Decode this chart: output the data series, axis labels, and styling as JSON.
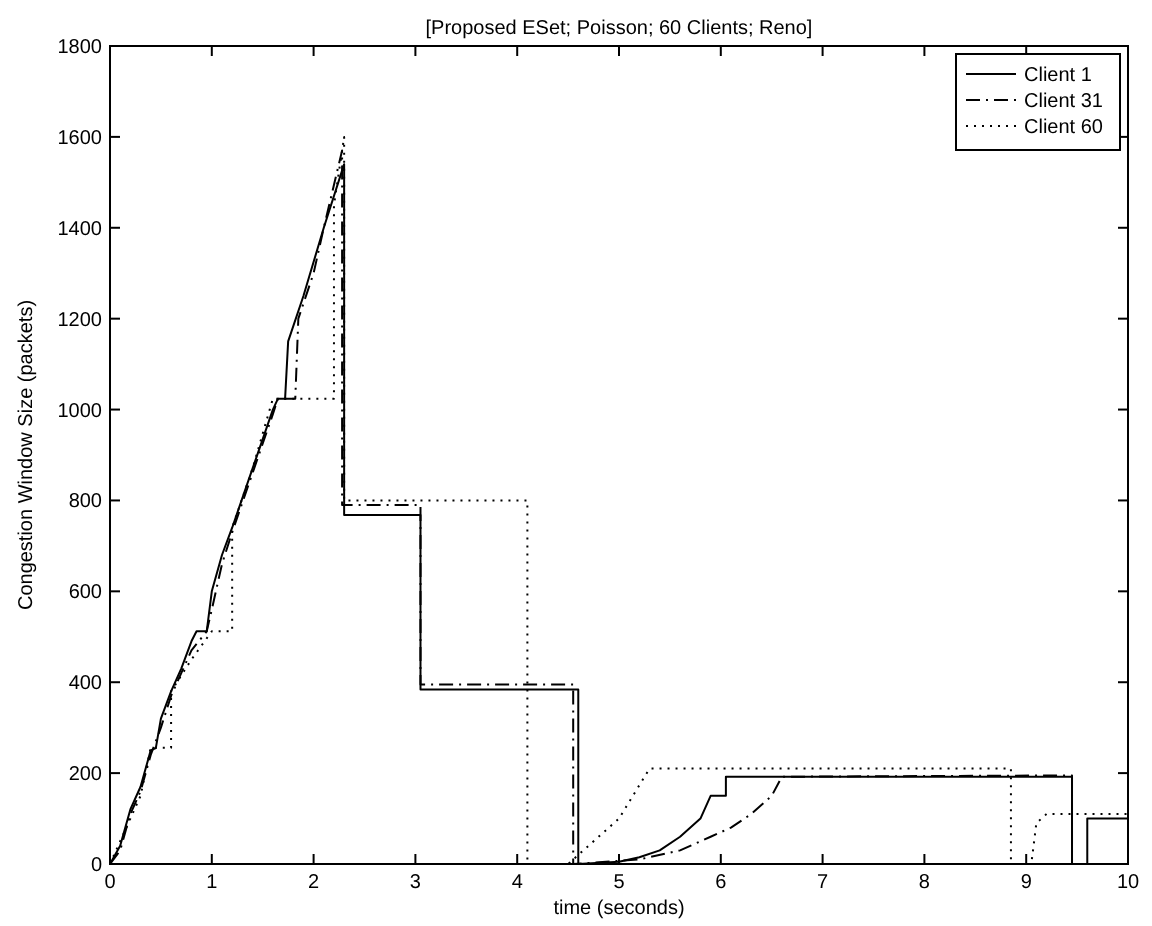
{
  "chart_data": {
    "type": "line",
    "title": "[Proposed ESet; Poisson; 60 Clients; Reno]",
    "xlabel": "time (seconds)",
    "ylabel": "Congestion Window Size (packets)",
    "xlim": [
      0,
      10
    ],
    "ylim": [
      0,
      1800
    ],
    "xticks": [
      0,
      1,
      2,
      3,
      4,
      5,
      6,
      7,
      8,
      9,
      10
    ],
    "yticks": [
      0,
      200,
      400,
      600,
      800,
      1000,
      1200,
      1400,
      1600,
      1800
    ],
    "grid": false,
    "legend": "top right",
    "series": [
      {
        "name": "Client 1",
        "color": "#000000",
        "line_style": "solid",
        "x": [
          0,
          0.1,
          0.2,
          0.3,
          0.4,
          0.45,
          0.5,
          0.6,
          0.7,
          0.8,
          0.85,
          0.95,
          1.0,
          1.1,
          1.2,
          1.4,
          1.6,
          1.65,
          1.72,
          1.75,
          1.9,
          2.1,
          2.3,
          2.3,
          3.05,
          3.05,
          4.6,
          4.6,
          5.0,
          5.2,
          5.4,
          5.6,
          5.8,
          5.9,
          6.05,
          6.05,
          9.45,
          9.45,
          9.6,
          9.6,
          10
        ],
        "values": [
          0,
          40,
          120,
          170,
          250,
          255,
          320,
          380,
          430,
          490,
          512,
          512,
          600,
          680,
          740,
          870,
          1000,
          1024,
          1024,
          1150,
          1250,
          1400,
          1540,
          768,
          768,
          384,
          384,
          0,
          5,
          15,
          30,
          60,
          100,
          150,
          150,
          192,
          192,
          0,
          0,
          100,
          100
        ]
      },
      {
        "name": "Client 31",
        "color": "#000000",
        "line_style": "dashdot",
        "x": [
          0,
          0.1,
          0.2,
          0.3,
          0.4,
          0.5,
          0.6,
          0.7,
          0.8,
          0.95,
          1.0,
          1.1,
          1.2,
          1.4,
          1.6,
          1.65,
          1.82,
          1.85,
          2.0,
          2.1,
          2.28,
          2.28,
          3.05,
          3.05,
          4.55,
          4.55,
          5.2,
          5.6,
          5.9,
          6.1,
          6.3,
          6.5,
          6.6,
          9.45,
          9.45
        ],
        "values": [
          0,
          30,
          110,
          160,
          240,
          300,
          370,
          420,
          470,
          512,
          560,
          660,
          730,
          860,
          990,
          1024,
          1024,
          1200,
          1300,
          1400,
          1570,
          790,
          790,
          395,
          395,
          0,
          10,
          30,
          60,
          80,
          110,
          150,
          192,
          195,
          0
        ]
      },
      {
        "name": "Client 60",
        "color": "#000000",
        "line_style": "dotted",
        "x": [
          0,
          0.2,
          0.3,
          0.4,
          0.6,
          0.6,
          0.8,
          1.0,
          1.2,
          1.2,
          1.4,
          1.6,
          2.2,
          2.2,
          2.3,
          2.3,
          4.1,
          4.1,
          4.5,
          4.6,
          5.0,
          5.3,
          8.85,
          8.85,
          9.05,
          9.1,
          9.2,
          10
        ],
        "values": [
          0,
          100,
          150,
          256,
          256,
          380,
          450,
          512,
          512,
          740,
          870,
          1024,
          1024,
          1450,
          1600,
          800,
          800,
          0,
          0,
          20,
          100,
          210,
          210,
          0,
          0,
          90,
          110,
          110
        ]
      }
    ]
  }
}
